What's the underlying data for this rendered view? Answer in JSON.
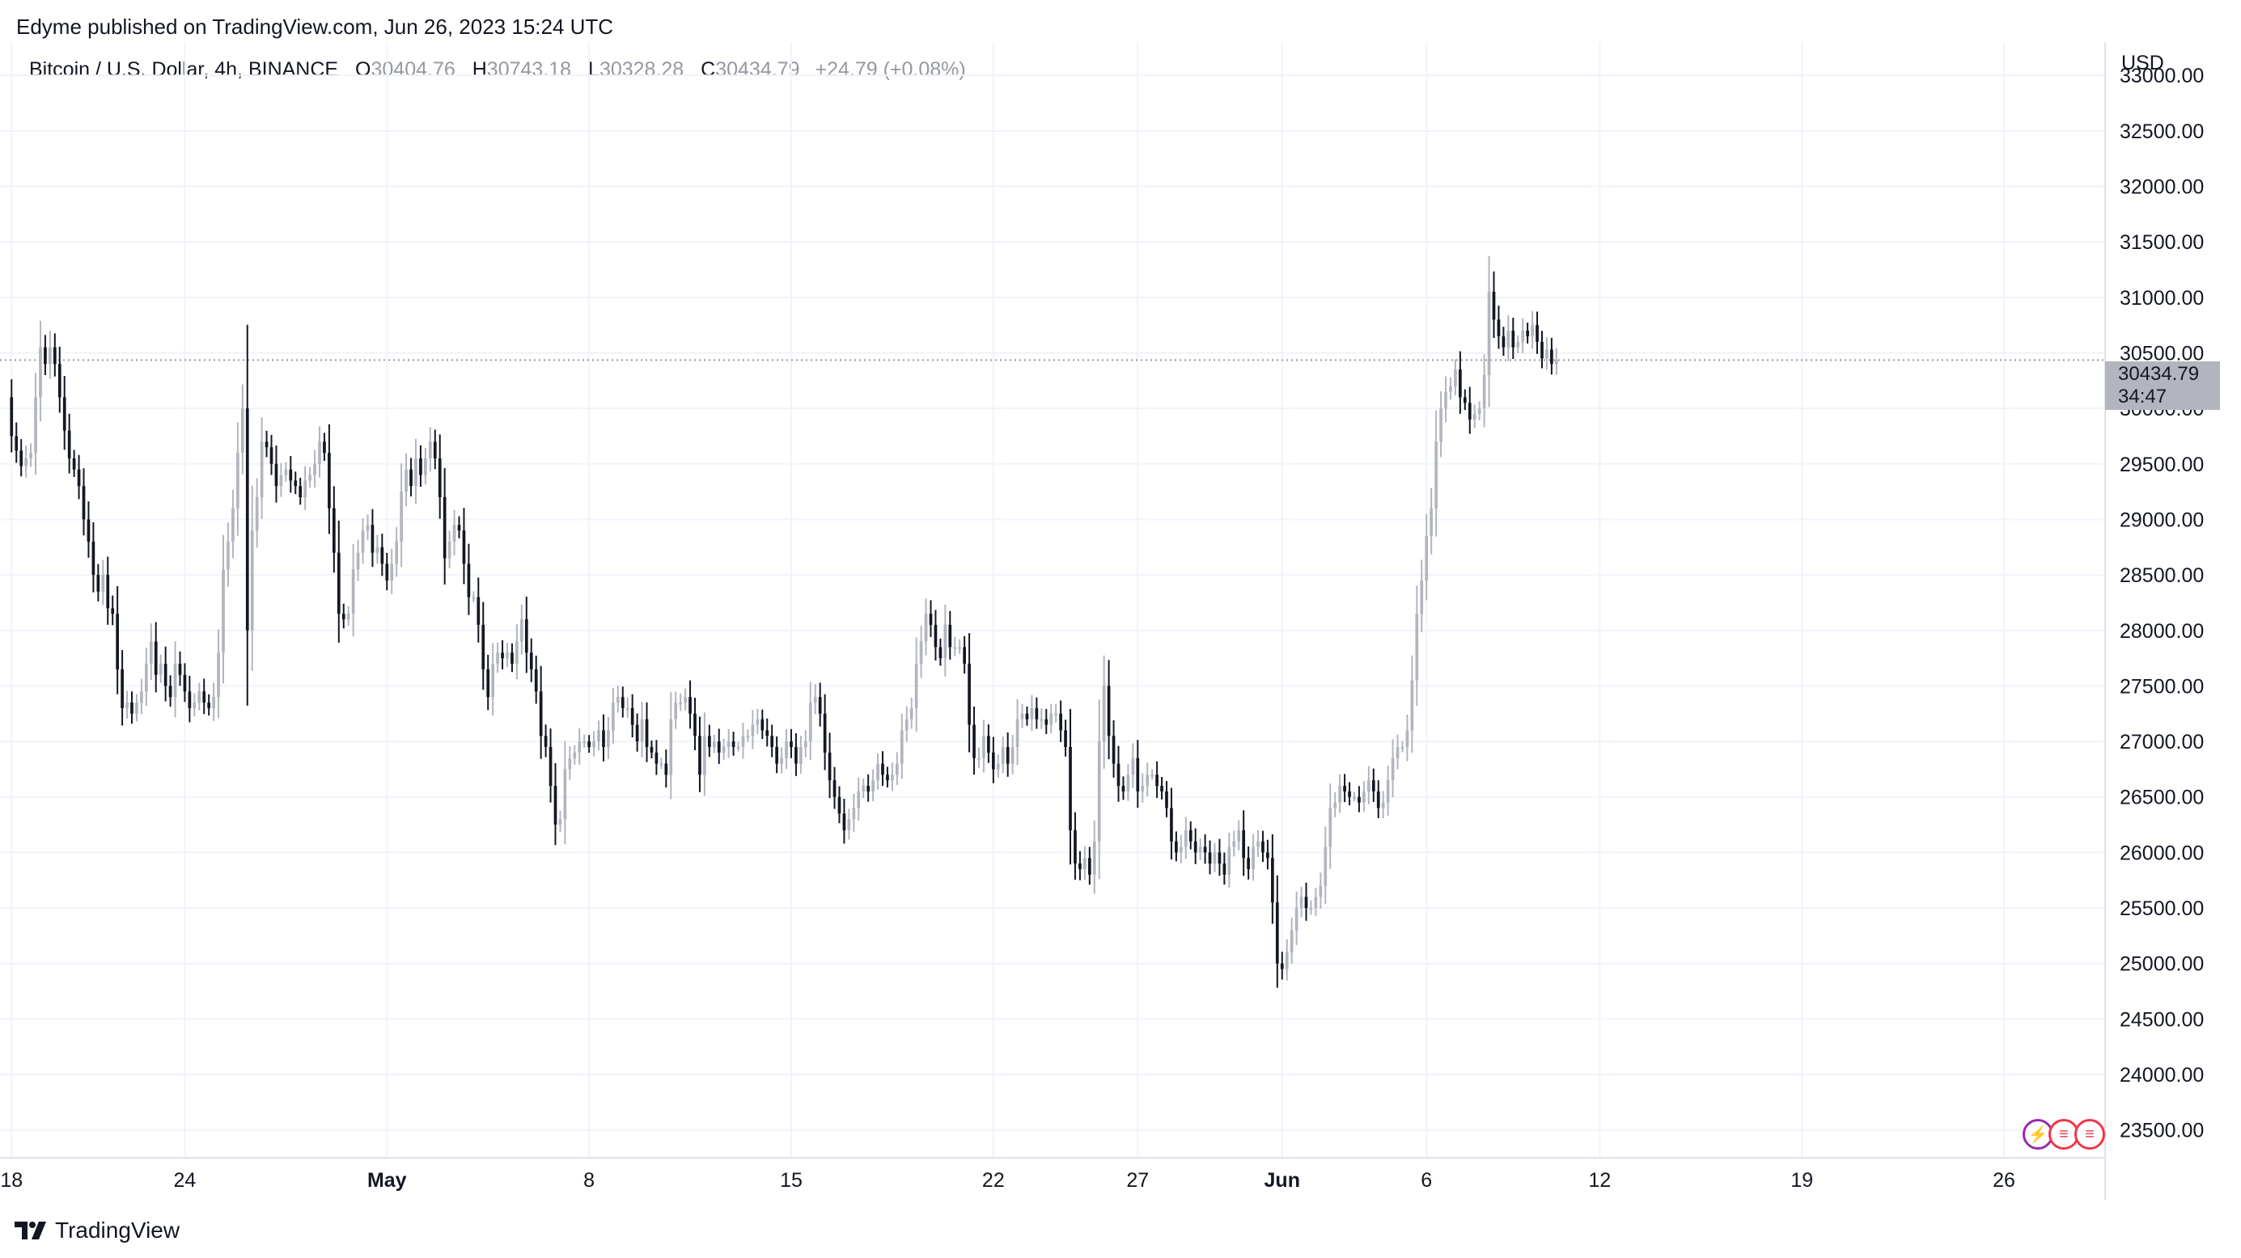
{
  "header": {
    "published_text": "Edyme published on TradingView.com, Jun 26, 2023 15:24 UTC"
  },
  "legend": {
    "symbol": "Bitcoin / U.S. Dollar, 4h, BINANCE",
    "open_label": "O",
    "open": "30404.76",
    "high_label": "H",
    "high": "30743.18",
    "low_label": "L",
    "low": "30328.28",
    "close_label": "C",
    "close": "30434.79",
    "change": "+24.79 (+0.08%)"
  },
  "price_axis": {
    "currency": "USD",
    "current_price": "30434.79",
    "countdown": "34:47"
  },
  "brand": {
    "name": "TradingView"
  },
  "icons": [
    {
      "name": "lightning-icon",
      "color": "#9c27b0"
    },
    {
      "name": "us-flag-icon",
      "color": "#f23645"
    },
    {
      "name": "us-flag-icon-2",
      "color": "#f23645"
    }
  ],
  "colors": {
    "up": "#b2b5be",
    "down": "#131722",
    "grid": "#f0f3fa",
    "price_line": "#9598a1"
  },
  "chart_data": {
    "type": "candlestick",
    "title": "Bitcoin / U.S. Dollar, 4h, BINANCE",
    "ylim": [
      23250,
      33300
    ],
    "yticks": [
      23500,
      24000,
      24500,
      25000,
      25500,
      26000,
      26500,
      27000,
      27500,
      28000,
      28500,
      29000,
      29500,
      30000,
      30500,
      31000,
      31500,
      32000,
      32500,
      33000
    ],
    "ytick_labels": [
      "23500.00",
      "24000.00",
      "24500.00",
      "25000.00",
      "25500.00",
      "26000.00",
      "26500.00",
      "27000.00",
      "27500.00",
      "28000.00",
      "28500.00",
      "29000.00",
      "29500.00",
      "30000.00",
      "30500.00",
      "31000.00",
      "31500.00",
      "32000.00",
      "32500.00",
      "33000.00"
    ],
    "xticks": [
      {
        "label": "18",
        "day": 0,
        "month": false
      },
      {
        "label": "24",
        "day": 6,
        "month": false
      },
      {
        "label": "May",
        "day": 13,
        "month": true
      },
      {
        "label": "8",
        "day": 20,
        "month": false
      },
      {
        "label": "15",
        "day": 27,
        "month": false
      },
      {
        "label": "22",
        "day": 34,
        "month": false
      },
      {
        "label": "27",
        "day": 39,
        "month": false
      },
      {
        "label": "Jun",
        "day": 44,
        "month": true
      },
      {
        "label": "6",
        "day": 49,
        "month": false
      },
      {
        "label": "12",
        "day": 55,
        "month": false
      },
      {
        "label": "19",
        "day": 62,
        "month": false
      },
      {
        "label": "26",
        "day": 69,
        "month": false
      }
    ],
    "x_range_days": [
      -0.4,
      72.5
    ],
    "bars_per_day": 6,
    "first_open": 30100,
    "closes": [
      29750,
      29620,
      29480,
      29550,
      29600,
      30100,
      30550,
      30400,
      30550,
      30400,
      30100,
      29800,
      29550,
      29450,
      29300,
      29000,
      28800,
      28500,
      28350,
      28500,
      28200,
      28150,
      27650,
      27300,
      27350,
      27250,
      27350,
      27450,
      27700,
      27900,
      27600,
      27700,
      27500,
      27400,
      27700,
      27600,
      27450,
      27300,
      27350,
      27450,
      27350,
      27300,
      27400,
      27800,
      28550,
      28800,
      29100,
      29600,
      30000,
      28000,
      28900,
      29200,
      29700,
      29650,
      29500,
      29300,
      29400,
      29450,
      29350,
      29300,
      29200,
      29350,
      29400,
      29500,
      29700,
      29600,
      29100,
      28700,
      28150,
      28100,
      28150,
      28550,
      28700,
      28900,
      28950,
      28700,
      28750,
      28600,
      28450,
      28600,
      28800,
      29250,
      29450,
      29300,
      29550,
      29400,
      29550,
      29700,
      29550,
      29200,
      28650,
      28800,
      28950,
      28900,
      28600,
      28300,
      28300,
      28050,
      27650,
      27400,
      27700,
      27800,
      27750,
      27800,
      27700,
      27900,
      28100,
      27800,
      27650,
      27450,
      27050,
      26950,
      26600,
      26250,
      26300,
      26750,
      26850,
      26900,
      27000,
      27000,
      26950,
      27000,
      27100,
      26950,
      27100,
      27350,
      27400,
      27300,
      27300,
      27150,
      27000,
      27200,
      26950,
      26900,
      26800,
      26800,
      26700,
      27200,
      27350,
      27350,
      27400,
      27250,
      27050,
      26700,
      27050,
      26950,
      27000,
      26900,
      26950,
      27000,
      26950,
      26950,
      27050,
      27050,
      27150,
      27200,
      27100,
      27050,
      26950,
      26800,
      26850,
      27000,
      26950,
      26800,
      26950,
      27000,
      27350,
      27400,
      27250,
      26900,
      26650,
      26500,
      26350,
      26200,
      26300,
      26400,
      26550,
      26600,
      26550,
      26650,
      26800,
      26700,
      26650,
      26700,
      26800,
      27100,
      27200,
      27300,
      27700,
      27900,
      28150,
      28050,
      27850,
      27750,
      28050,
      27850,
      27850,
      27850,
      27700,
      27150,
      26850,
      26850,
      27050,
      26900,
      26750,
      26800,
      26950,
      26800,
      26950,
      27200,
      27250,
      27200,
      27300,
      27200,
      27200,
      27150,
      27250,
      27250,
      27100,
      26950,
      26200,
      25900,
      25850,
      25950,
      25800,
      26100,
      27000,
      27500,
      27050,
      26800,
      26600,
      26550,
      26700,
      26850,
      26550,
      26600,
      26700,
      26700,
      26600,
      26550,
      26400,
      26100,
      26000,
      26050,
      26200,
      26100,
      26000,
      26050,
      26000,
      25900,
      26000,
      25900,
      25800,
      26050,
      26100,
      26200,
      25950,
      25850,
      26050,
      26100,
      26000,
      25950,
      25550,
      25000,
      24950,
      25100,
      25300,
      25500,
      25600,
      25500,
      25500,
      25600,
      25700,
      26050,
      26400,
      26450,
      26600,
      26550,
      26500,
      26500,
      26450,
      26550,
      26650,
      26550,
      26400,
      26450,
      26650,
      26850,
      26950,
      26950,
      27100,
      27550,
      28150,
      28450,
      28850,
      29100,
      29700,
      30000,
      30150,
      30200,
      30350,
      30100,
      30050,
      29900,
      29950,
      30000,
      30300,
      31050,
      30800,
      30650,
      30550,
      30700,
      30550,
      30600,
      30700,
      30650,
      30750,
      30600,
      30450,
      30530,
      30400,
      30435
    ]
  }
}
